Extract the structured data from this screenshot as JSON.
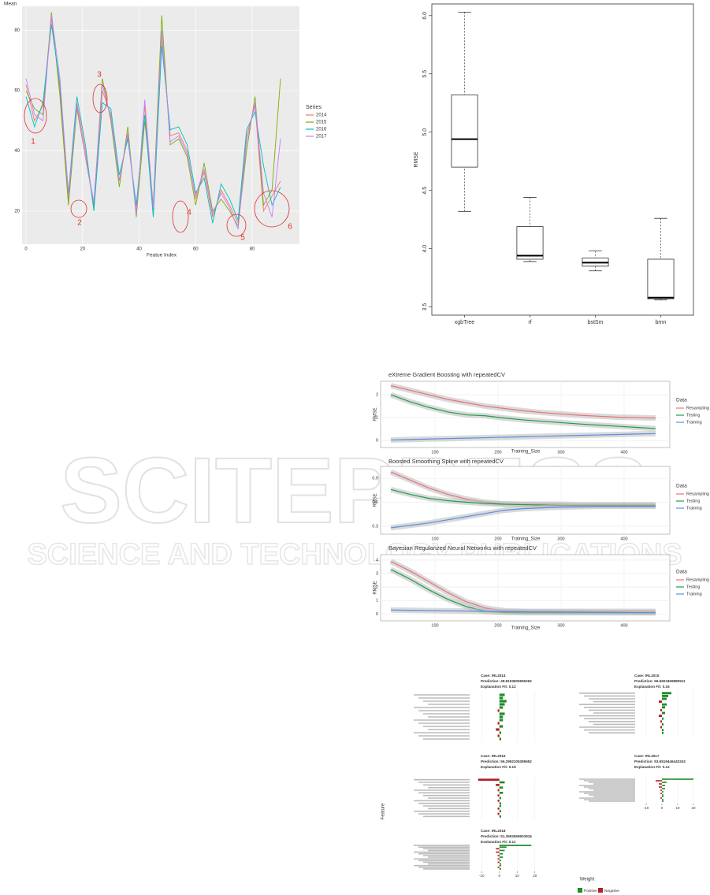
{
  "watermark": {
    "title": "SCITEPRESS",
    "subtitle": "SCIENCE AND TECHNOLOGY PUBLICATIONS"
  },
  "lime_shared": {
    "y_label": "Feature",
    "x_label": "Weight",
    "legend": [
      {
        "name": "Positive",
        "color": "#1e8c2a"
      },
      {
        "name": "Negative",
        "color": "#b3202a"
      }
    ]
  },
  "chart_data": [
    {
      "type": "line",
      "y_label": "Mean",
      "x_label": "Featue Index",
      "legend_title": "Series",
      "annotations": [
        "1",
        "2",
        "3",
        "4",
        "5",
        "6"
      ],
      "x": [
        0,
        3,
        6,
        9,
        12,
        15,
        18,
        21,
        24,
        27,
        30,
        33,
        36,
        39,
        42,
        45,
        48,
        51,
        54,
        57,
        60,
        63,
        66,
        69,
        72,
        75,
        78,
        81,
        84,
        87,
        90
      ],
      "xlim": [
        -1.4,
        96.7
      ],
      "ylim": [
        9,
        88
      ],
      "xticks": [
        0,
        20,
        40,
        60,
        80
      ],
      "yticks": [
        20,
        40,
        60,
        80
      ],
      "grid": true,
      "series": [
        {
          "name": "2014",
          "color": "#f8766d",
          "values": [
            62,
            50,
            55,
            84,
            60,
            24,
            56,
            40,
            21,
            60,
            52,
            30,
            45,
            20,
            55,
            20,
            78,
            45,
            46,
            40,
            24,
            33,
            18,
            27,
            22,
            16,
            45,
            55,
            20,
            25,
            30
          ]
        },
        {
          "name": "2015",
          "color": "#7cae00",
          "values": [
            60,
            54,
            52,
            86,
            58,
            22,
            54,
            38,
            22,
            64,
            50,
            28,
            48,
            18,
            50,
            22,
            85,
            42,
            44,
            38,
            22,
            36,
            20,
            24,
            20,
            15,
            40,
            58,
            22,
            27,
            64
          ]
        },
        {
          "name": "2016",
          "color": "#00bfc4",
          "values": [
            58,
            48,
            56,
            82,
            62,
            26,
            58,
            42,
            20,
            56,
            54,
            32,
            44,
            22,
            52,
            18,
            75,
            47,
            48,
            42,
            26,
            31,
            16,
            29,
            24,
            17,
            47,
            53,
            35,
            22,
            28
          ]
        },
        {
          "name": "2017",
          "color": "#c77cff",
          "values": [
            64,
            52,
            50,
            85,
            64,
            25,
            55,
            38,
            23,
            62,
            51,
            30,
            46,
            19,
            57,
            21,
            80,
            43,
            45,
            39,
            25,
            34,
            19,
            26,
            21,
            14,
            43,
            56,
            26,
            18,
            44
          ]
        }
      ]
    },
    {
      "type": "box",
      "y_label": "RMSE",
      "categories": [
        "xgbTree",
        "rf",
        "bstSm",
        "brnn"
      ],
      "min": [
        4.32,
        3.89,
        3.81,
        3.56
      ],
      "q1": [
        4.7,
        3.91,
        3.85,
        3.57
      ],
      "median": [
        4.94,
        3.94,
        3.88,
        3.58
      ],
      "q3": [
        5.32,
        4.19,
        3.92,
        3.91
      ],
      "max": [
        6.03,
        4.44,
        3.98,
        4.26
      ],
      "ylim": [
        3.43,
        6.1
      ],
      "yticks": [
        3.5,
        {
          "value": 4,
          "label": "4.0"
        },
        4.5,
        {
          "value": 5,
          "label": "5.0"
        },
        5.5,
        {
          "value": 6,
          "label": "6.0"
        }
      ]
    },
    {
      "type": "line",
      "band": true,
      "title": "eXtreme Gradient Boosting with repeatedCV",
      "y_label": "RMSE",
      "x_label": "Training_Size",
      "legend_title": "Data",
      "x": [
        30,
        60,
        90,
        120,
        150,
        180,
        210,
        240,
        270,
        300,
        330,
        360,
        390,
        420,
        450
      ],
      "xlim": [
        13.75,
        472.5
      ],
      "ylim": [
        -0.31,
        2.59
      ],
      "xticks": [
        100,
        200,
        300,
        400
      ],
      "yticks": [
        0,
        1,
        2
      ],
      "grid": true,
      "series": [
        {
          "name": "Resampling",
          "color": "#e8737a",
          "values": [
            2.4,
            2.2,
            2.0,
            1.8,
            1.65,
            1.5,
            1.4,
            1.3,
            1.22,
            1.16,
            1.1,
            1.06,
            1.02,
            1.0,
            0.98
          ]
        },
        {
          "name": "Testing",
          "color": "#1f9e49",
          "values": [
            2.0,
            1.7,
            1.45,
            1.25,
            1.12,
            1.08,
            0.98,
            0.9,
            0.84,
            0.78,
            0.72,
            0.67,
            0.62,
            0.57,
            0.52
          ]
        },
        {
          "name": "Training",
          "color": "#5b8fe0",
          "values": [
            0.02,
            0.04,
            0.06,
            0.08,
            0.1,
            0.12,
            0.14,
            0.16,
            0.18,
            0.2,
            0.22,
            0.24,
            0.26,
            0.28,
            0.3
          ]
        }
      ]
    },
    {
      "type": "line",
      "band": true,
      "title": "Boosted Smoothing Spline with repeatedCV",
      "y_label": "RMSE",
      "x_label": "Training_Size",
      "legend_title": "Data",
      "x": [
        30,
        60,
        90,
        120,
        150,
        180,
        210,
        240,
        270,
        300,
        330,
        360,
        390,
        420,
        450
      ],
      "xlim": [
        13.75,
        472.5
      ],
      "ylim": [
        0.2,
        1.05
      ],
      "xticks": [
        100,
        200,
        300,
        400
      ],
      "yticks": [
        0.3,
        0.6,
        0.9
      ],
      "grid": true,
      "series": [
        {
          "name": "Resampling",
          "color": "#e8737a",
          "values": [
            0.98,
            0.88,
            0.78,
            0.7,
            0.64,
            0.6,
            0.58,
            0.575,
            0.575,
            0.575,
            0.57,
            0.57,
            0.57,
            0.57,
            0.57
          ]
        },
        {
          "name": "Testing",
          "color": "#1f9e49",
          "values": [
            0.76,
            0.7,
            0.65,
            0.62,
            0.6,
            0.585,
            0.575,
            0.57,
            0.565,
            0.56,
            0.56,
            0.56,
            0.56,
            0.56,
            0.56
          ]
        },
        {
          "name": "Training",
          "color": "#5b8fe0",
          "values": [
            0.28,
            0.31,
            0.34,
            0.38,
            0.42,
            0.46,
            0.5,
            0.52,
            0.53,
            0.54,
            0.545,
            0.55,
            0.55,
            0.55,
            0.55
          ]
        }
      ]
    },
    {
      "type": "line",
      "band": true,
      "title": "Bayesian Regularized Neural Networks with repeatedCV",
      "y_label": "RMSE",
      "x_label": "Training_Size",
      "legend_title": "Data",
      "x": [
        30,
        60,
        90,
        120,
        150,
        180,
        210,
        240,
        270,
        300,
        330,
        360,
        390,
        420,
        450
      ],
      "xlim": [
        13.75,
        472.5
      ],
      "ylim": [
        -0.5,
        4.4
      ],
      "xticks": [
        100,
        200,
        300,
        400
      ],
      "yticks": [
        0,
        1,
        2,
        3,
        4
      ],
      "grid": true,
      "series": [
        {
          "name": "Resampling",
          "color": "#e8737a",
          "values": [
            3.9,
            3.2,
            2.4,
            1.6,
            0.9,
            0.45,
            0.25,
            0.2,
            0.2,
            0.2,
            0.2,
            0.2,
            0.2,
            0.2,
            0.2
          ]
        },
        {
          "name": "Testing",
          "color": "#1f9e49",
          "values": [
            3.3,
            2.6,
            1.8,
            1.1,
            0.55,
            0.2,
            0.12,
            0.1,
            0.1,
            0.1,
            0.1,
            0.1,
            0.1,
            0.1,
            0.1
          ]
        },
        {
          "name": "Training",
          "color": "#5b8fe0",
          "values": [
            0.3,
            0.28,
            0.26,
            0.24,
            0.22,
            0.2,
            0.18,
            0.17,
            0.16,
            0.15,
            0.14,
            0.13,
            0.12,
            0.11,
            0.1
          ]
        }
      ]
    },
    {
      "type": "hbar",
      "title_lines": [
        "Case: IRL2014",
        "Prediction: 48.8193605955262",
        "Explanation Fit: 0.12"
      ],
      "xlim": [
        -15,
        25
      ],
      "values": [
        3,
        2,
        4,
        3,
        2,
        -1,
        3,
        2,
        2,
        -1,
        2,
        -2,
        1,
        -1,
        1
      ]
    },
    {
      "type": "hbar",
      "title_lines": [
        "Case: IRL2015",
        "Prediction: 56.6603459880511",
        "Explanation Fit: 0.16"
      ],
      "xlim": [
        -15,
        25
      ],
      "values": [
        6,
        4,
        3,
        -2,
        3,
        2,
        -1,
        2,
        -2,
        1,
        -1,
        1,
        -1,
        1,
        1
      ]
    },
    {
      "type": "hbar",
      "title_lines": [
        "Case: IRL2016",
        "Prediction: 56.2992105395652",
        "Explanation Fit: 0.15"
      ],
      "xlim": [
        -15,
        25
      ],
      "values": [
        -12,
        3,
        -2,
        2,
        -1,
        2,
        -1,
        1,
        -1,
        1,
        1,
        -1,
        1,
        -1,
        1
      ]
    },
    {
      "type": "hbar",
      "title_lines": [
        "Case: IRL2017",
        "Prediction: 53.6519446443243",
        "Explanation Fit: 0.12"
      ],
      "xlim": [
        -15,
        25
      ],
      "xticks": [
        -10,
        0,
        10,
        20
      ],
      "values": [
        20,
        -4,
        3,
        -2,
        2,
        -2,
        2,
        -1,
        1,
        -1,
        1,
        1,
        -1,
        1,
        1
      ]
    },
    {
      "type": "hbar",
      "title_lines": [
        "Case: IRL2018",
        "Prediction: 51.3592659503916",
        "Explanation Fit: 0.11"
      ],
      "xlim": [
        -15,
        25
      ],
      "xticks": [
        -10,
        0,
        10,
        20
      ],
      "values": [
        18,
        4,
        -2,
        3,
        -2,
        2,
        -1,
        2,
        -1,
        1,
        -1,
        1,
        1,
        -1,
        1
      ]
    }
  ]
}
